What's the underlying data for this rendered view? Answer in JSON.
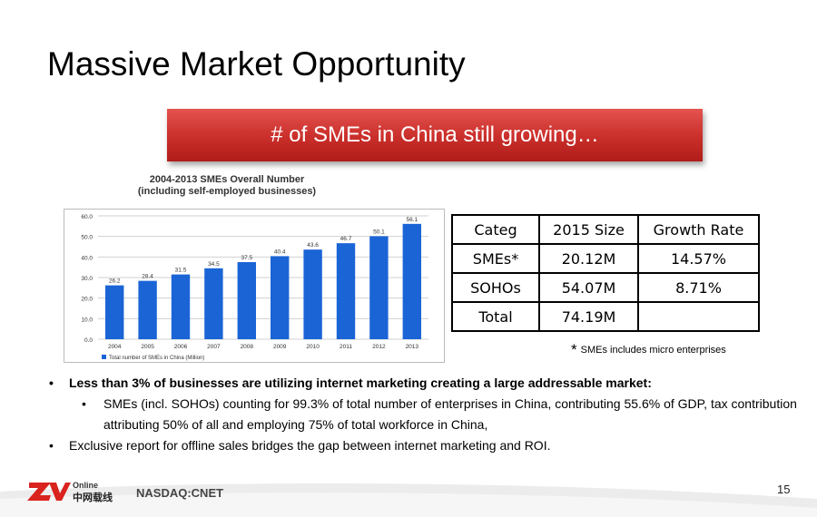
{
  "slide": {
    "title": "Massive Market Opportunity",
    "banner": "# of SMEs in China still growing…",
    "page_number": "15",
    "ticker": "NASDAQ:CNET",
    "logo_text": "Online",
    "logo_chinese": "中网载线"
  },
  "chart_data": {
    "type": "bar",
    "title": "2004-2013 SMEs Overall Number",
    "subtitle": "(including self-employed businesses)",
    "categories": [
      "2004",
      "2005",
      "2006",
      "2007",
      "2008",
      "2009",
      "2010",
      "2011",
      "2012",
      "2013"
    ],
    "series": [
      {
        "name": "Total number of SMEs in China (Million)",
        "values": [
          26.2,
          28.4,
          31.5,
          34.5,
          37.5,
          40.4,
          43.6,
          46.7,
          50.1,
          56.1
        ]
      }
    ],
    "yticks": [
      "0.0",
      "10.0",
      "20.0",
      "30.0",
      "40.0",
      "50.0",
      "60.0"
    ],
    "ylim": [
      0,
      60
    ],
    "grid": true,
    "legend": "bottom-left",
    "colors": {
      "bar": "#1a64d6"
    }
  },
  "table": {
    "headers": [
      "Categ",
      "2015 Size",
      "Growth Rate"
    ],
    "rows": [
      [
        "SMEs*",
        "20.12M",
        "14.57%"
      ],
      [
        "SOHOs",
        "54.07M",
        "8.71%"
      ],
      [
        "Total",
        "74.19M",
        ""
      ]
    ],
    "footnote_star": "*",
    "footnote": "SMEs includes micro enterprises"
  },
  "bullets": {
    "b1": "Less than 3% of businesses are utilizing internet marketing creating a large addressable market:",
    "b2": "SMEs (incl. SOHOs) counting for 99.3% of total number of enterprises in China, contributing 55.6% of GDP, tax contribution attributing 50% of all and employing 75% of total workforce in China,",
    "b3": "Exclusive report for offline sales bridges the gap between internet marketing and ROI.",
    "marker": "•"
  },
  "colors": {
    "banner": "#c92e2a",
    "logo_red": "#d9231e"
  }
}
